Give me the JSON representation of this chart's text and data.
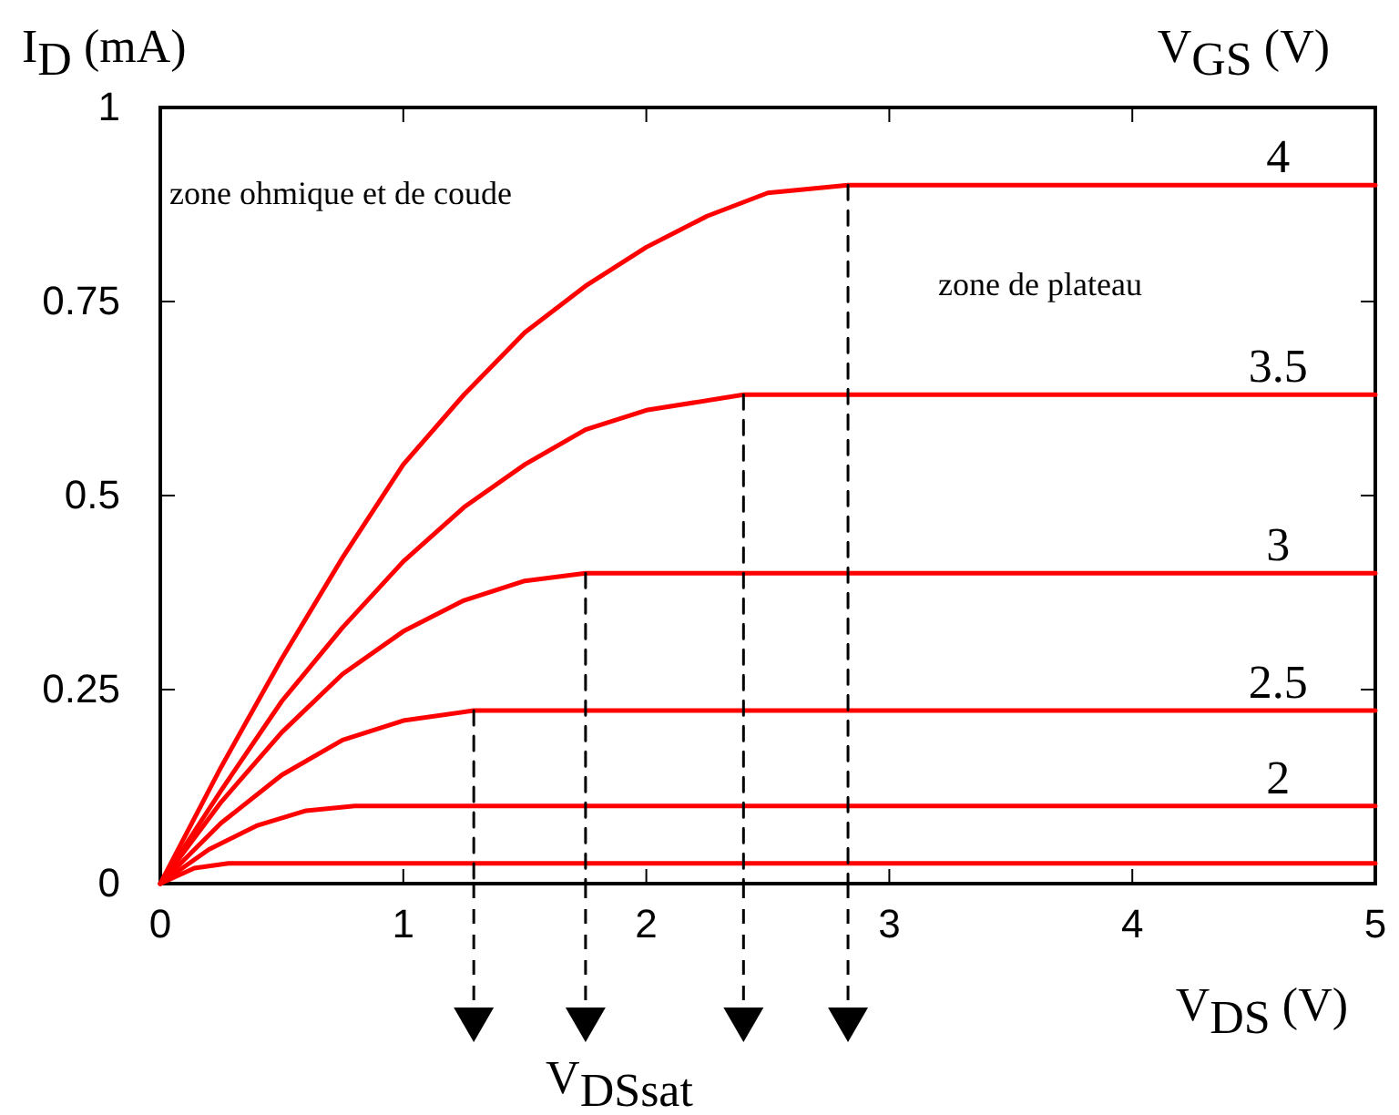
{
  "chart_data": {
    "type": "line",
    "xlabel": "V$_{DS}$ (V)",
    "ylabel": "I$_{D}$ (mA)",
    "legend_title": "V$_{GS}$ (V)",
    "xlim": [
      0,
      5
    ],
    "ylim": [
      0,
      1
    ],
    "xticks": [
      0,
      1,
      2,
      3,
      4,
      5
    ],
    "yticks": [
      0,
      0.25,
      0.5,
      0.75,
      1
    ],
    "annotations": [
      "zone ohmique et de coude",
      "zone de plateau",
      "V$_{DSsat}$"
    ],
    "series": [
      {
        "name": "4",
        "color": "#ff0000",
        "x": [
          0,
          0.25,
          0.5,
          0.75,
          1,
          1.25,
          1.5,
          1.75,
          2,
          2.25,
          2.5,
          2.83,
          5
        ],
        "values": [
          0,
          0.15,
          0.29,
          0.42,
          0.54,
          0.63,
          0.71,
          0.77,
          0.82,
          0.86,
          0.89,
          0.9,
          0.9
        ]
      },
      {
        "name": "3.5",
        "color": "#ff0000",
        "x": [
          0,
          0.25,
          0.5,
          0.75,
          1,
          1.25,
          1.5,
          1.75,
          2,
          2.4,
          5
        ],
        "values": [
          0,
          0.12,
          0.235,
          0.33,
          0.415,
          0.485,
          0.54,
          0.585,
          0.61,
          0.63,
          0.63
        ]
      },
      {
        "name": "3",
        "color": "#ff0000",
        "x": [
          0,
          0.25,
          0.5,
          0.75,
          1,
          1.25,
          1.5,
          1.75,
          5
        ],
        "values": [
          0,
          0.105,
          0.195,
          0.27,
          0.325,
          0.365,
          0.39,
          0.4,
          0.4
        ]
      },
      {
        "name": "2.5",
        "color": "#ff0000",
        "x": [
          0,
          0.25,
          0.5,
          0.75,
          1,
          1.29,
          5
        ],
        "values": [
          0,
          0.078,
          0.14,
          0.185,
          0.21,
          0.223,
          0.223
        ]
      },
      {
        "name": "2",
        "color": "#ff0000",
        "x": [
          0,
          0.2,
          0.4,
          0.6,
          0.8,
          5
        ],
        "values": [
          0,
          0.044,
          0.075,
          0.094,
          0.1,
          0.1
        ]
      },
      {
        "color": "#ff0000",
        "x": [
          0,
          0.14,
          0.28,
          5
        ],
        "values": [
          0,
          0.02,
          0.026,
          0.026
        ]
      },
      {
        "color": "#000000",
        "line_style": "dashed",
        "x": [
          2.83,
          2.83
        ],
        "values": [
          0.9,
          0
        ]
      },
      {
        "color": "#000000",
        "line_style": "dashed",
        "x": [
          2.4,
          2.4
        ],
        "values": [
          0.63,
          0
        ]
      },
      {
        "color": "#000000",
        "line_style": "dashed",
        "x": [
          1.75,
          1.75
        ],
        "values": [
          0.4,
          0
        ]
      },
      {
        "color": "#000000",
        "line_style": "dashed",
        "x": [
          1.29,
          1.29
        ],
        "values": [
          0.223,
          0
        ]
      }
    ]
  }
}
